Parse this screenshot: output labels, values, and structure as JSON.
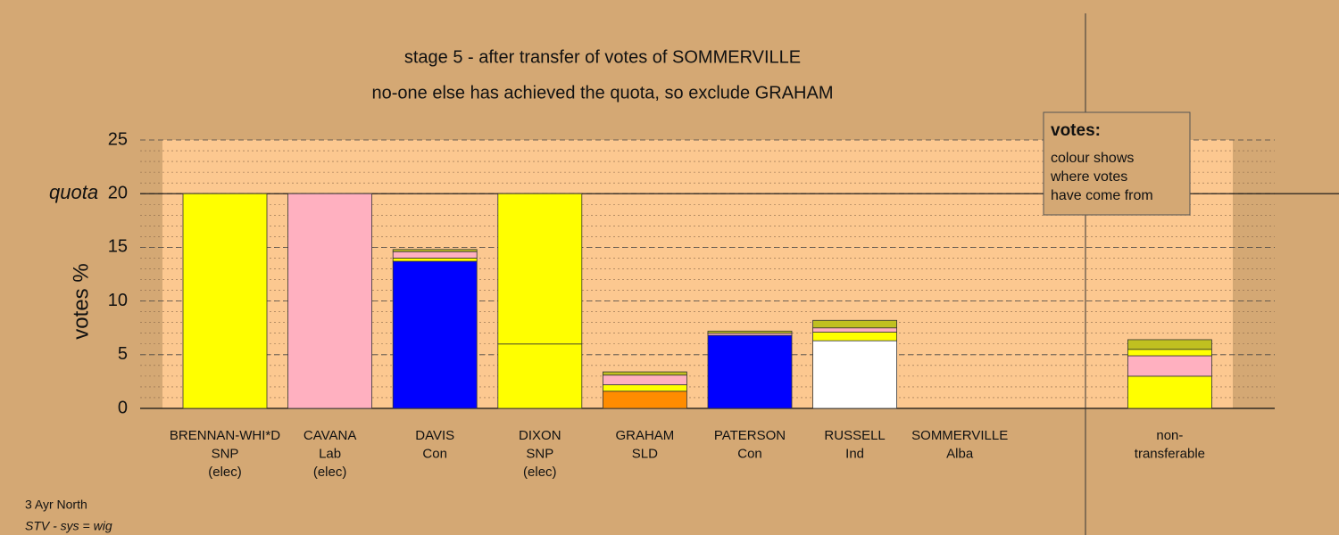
{
  "chart_data": {
    "type": "stacked-bar",
    "title": "stage 5 - after transfer of votes of SOMMERVILLE",
    "subtitle": "no-one else has achieved the quota, so exclude GRAHAM",
    "y_label": "votes %",
    "quota_label": "quota",
    "quota": 20,
    "categories": [
      [
        "BRENNAN-WHI*D",
        "SNP",
        "(elec)"
      ],
      [
        "CAVANA",
        "Lab",
        "(elec)"
      ],
      [
        "DAVIS",
        "Con"
      ],
      [
        "DIXON",
        "SNP",
        "(elec)"
      ],
      [
        "GRAHAM",
        "SLD"
      ],
      [
        "PATERSON",
        "Con"
      ],
      [
        "RUSSELL",
        "Ind"
      ],
      [
        "SOMMERVILLE",
        "Alba"
      ],
      null,
      [
        "non-",
        "transferable"
      ]
    ],
    "series": [
      {
        "color": "#0000ff",
        "values": [
          0,
          0,
          13.7,
          0,
          0,
          6.8,
          0,
          0,
          null,
          0
        ]
      },
      {
        "color": "#ff8c00",
        "values": [
          0,
          0,
          0,
          0,
          1.6,
          0,
          0,
          0,
          null,
          0
        ]
      },
      {
        "color": "#ffffff",
        "values": [
          0,
          0,
          0,
          0,
          0,
          0,
          6.3,
          0,
          null,
          0
        ]
      },
      {
        "color": "#ffff00",
        "values": [
          20,
          0,
          0.3,
          6,
          0.6,
          0,
          0.8,
          0,
          null,
          3
        ]
      },
      {
        "color": "#ffb0c0",
        "values": [
          0,
          20,
          0.6,
          0,
          0.9,
          0.2,
          0.4,
          0,
          null,
          1.9
        ]
      },
      {
        "color": "#ffff00",
        "values": [
          0,
          0,
          0,
          14,
          0,
          0,
          0,
          0,
          null,
          0.6
        ]
      },
      {
        "color": "#c0c020",
        "values": [
          0,
          0,
          0.2,
          0,
          0.3,
          0.2,
          0.7,
          0,
          null,
          0.9
        ]
      }
    ],
    "ylim": [
      0,
      25
    ],
    "yticks": [
      0,
      5,
      10,
      15,
      20,
      25
    ],
    "y_minor_step": 1,
    "grid": true,
    "legend_box": {
      "heading": "votes:",
      "lines": [
        "colour shows",
        "where votes",
        "have come from"
      ]
    },
    "footer": {
      "area": "3 Ayr North",
      "system": "STV - sys = wig"
    }
  }
}
